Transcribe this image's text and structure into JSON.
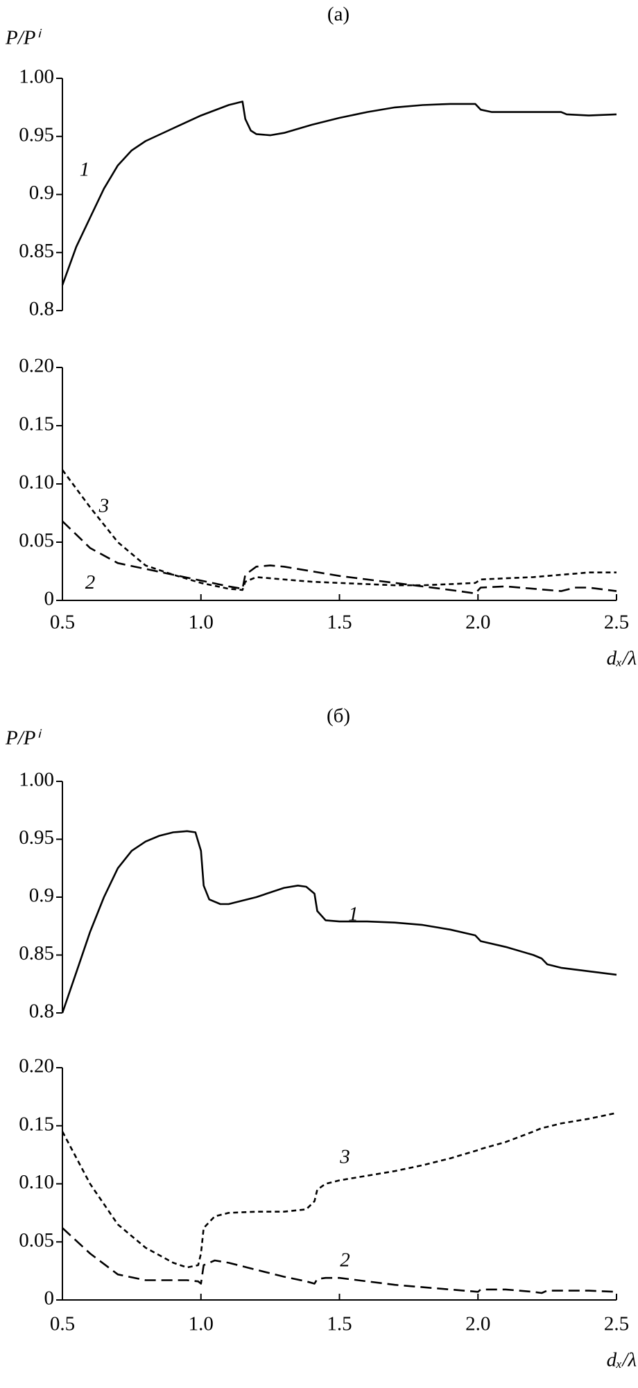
{
  "chart_data": [
    {
      "type": "line",
      "title": "(a)",
      "y_label": "P/Pⁱ",
      "xlim": [
        0.5,
        2.5
      ],
      "ylim": [
        0.8,
        1.0
      ],
      "yticks": [
        0.8,
        0.85,
        0.9,
        0.95,
        {
          "value": 1.0,
          "label": "1.00"
        }
      ],
      "x": [
        0.5,
        0.55,
        0.6,
        0.65,
        0.7,
        0.75,
        0.8,
        0.9,
        1.0,
        1.1,
        1.15,
        1.16,
        1.18,
        1.2,
        1.25,
        1.3,
        1.4,
        1.5,
        1.6,
        1.7,
        1.8,
        1.9,
        1.99,
        2.01,
        2.05,
        2.2,
        2.3,
        2.32,
        2.4,
        2.5
      ],
      "series": [
        {
          "name": "1",
          "color": "#000000",
          "line_style": "solid",
          "values": [
            0.822,
            0.855,
            0.88,
            0.905,
            0.925,
            0.938,
            0.946,
            0.957,
            0.968,
            0.977,
            0.98,
            0.965,
            0.955,
            0.952,
            0.951,
            0.953,
            0.96,
            0.966,
            0.971,
            0.975,
            0.977,
            0.978,
            0.978,
            0.973,
            0.971,
            0.971,
            0.971,
            0.969,
            0.968,
            0.969
          ]
        }
      ]
    },
    {
      "type": "line",
      "x_label": "dₓ/λ",
      "xlim": [
        0.5,
        2.5
      ],
      "ylim": [
        0,
        0.2
      ],
      "xticks": [
        0.5,
        {
          "value": 1.0,
          "label": "1.0"
        },
        1.5,
        {
          "value": 2.0,
          "label": "2.0"
        },
        2.5
      ],
      "yticks": [
        0,
        0.05,
        {
          "value": 0.1,
          "label": "0.10"
        },
        0.15,
        {
          "value": 0.2,
          "label": "0.20"
        }
      ],
      "x": [
        0.5,
        0.6,
        0.7,
        0.8,
        0.9,
        1.0,
        1.1,
        1.15,
        1.16,
        1.2,
        1.25,
        1.3,
        1.4,
        1.5,
        1.6,
        1.7,
        1.8,
        1.9,
        1.99,
        2.01,
        2.1,
        2.2,
        2.3,
        2.35,
        2.4,
        2.5
      ],
      "series": [
        {
          "name": "2",
          "color": "#000000",
          "line_style": "long-dash",
          "values": [
            0.068,
            0.045,
            0.032,
            0.027,
            0.022,
            0.017,
            0.012,
            0.01,
            0.022,
            0.029,
            0.03,
            0.029,
            0.025,
            0.021,
            0.018,
            0.015,
            0.012,
            0.009,
            0.006,
            0.011,
            0.012,
            0.01,
            0.008,
            0.011,
            0.011,
            0.008
          ]
        },
        {
          "name": "3",
          "color": "#000000",
          "line_style": "short-dash",
          "values": [
            0.112,
            0.08,
            0.05,
            0.03,
            0.022,
            0.015,
            0.01,
            0.009,
            0.016,
            0.02,
            0.019,
            0.018,
            0.016,
            0.015,
            0.014,
            0.013,
            0.013,
            0.014,
            0.015,
            0.018,
            0.019,
            0.02,
            0.022,
            0.023,
            0.024,
            0.024
          ]
        }
      ]
    },
    {
      "type": "line",
      "title": "(б)",
      "y_label": "P/Pⁱ",
      "xlim": [
        0.5,
        2.5
      ],
      "ylim": [
        0.8,
        1.0
      ],
      "yticks": [
        0.8,
        0.85,
        0.9,
        0.95,
        {
          "value": 1.0,
          "label": "1.00"
        }
      ],
      "x": [
        0.5,
        0.55,
        0.6,
        0.65,
        0.7,
        0.75,
        0.8,
        0.85,
        0.9,
        0.95,
        0.98,
        1.0,
        1.01,
        1.03,
        1.07,
        1.1,
        1.2,
        1.3,
        1.35,
        1.38,
        1.41,
        1.42,
        1.45,
        1.5,
        1.6,
        1.7,
        1.8,
        1.9,
        1.99,
        2.01,
        2.1,
        2.2,
        2.23,
        2.25,
        2.3,
        2.4,
        2.5
      ],
      "series": [
        {
          "name": "1",
          "color": "#000000",
          "line_style": "solid",
          "values": [
            0.8,
            0.835,
            0.87,
            0.9,
            0.925,
            0.94,
            0.948,
            0.953,
            0.956,
            0.957,
            0.956,
            0.94,
            0.91,
            0.898,
            0.894,
            0.894,
            0.9,
            0.908,
            0.91,
            0.909,
            0.903,
            0.888,
            0.88,
            0.879,
            0.879,
            0.878,
            0.876,
            0.872,
            0.867,
            0.862,
            0.857,
            0.85,
            0.847,
            0.842,
            0.839,
            0.836,
            0.833
          ]
        }
      ]
    },
    {
      "type": "line",
      "x_label": "dₓ/λ",
      "xlim": [
        0.5,
        2.5
      ],
      "ylim": [
        0,
        0.2
      ],
      "xticks": [
        0.5,
        {
          "value": 1.0,
          "label": "1.0"
        },
        1.5,
        {
          "value": 2.0,
          "label": "2.0"
        },
        2.5
      ],
      "yticks": [
        0,
        0.05,
        {
          "value": 0.1,
          "label": "0.10"
        },
        0.15,
        {
          "value": 0.2,
          "label": "0.20"
        }
      ],
      "x": [
        0.5,
        0.6,
        0.7,
        0.8,
        0.9,
        0.95,
        0.99,
        1.0,
        1.01,
        1.05,
        1.1,
        1.2,
        1.3,
        1.38,
        1.41,
        1.42,
        1.45,
        1.5,
        1.6,
        1.7,
        1.8,
        1.9,
        2.0,
        2.01,
        2.1,
        2.2,
        2.23,
        2.25,
        2.3,
        2.4,
        2.5
      ],
      "series": [
        {
          "name": "2",
          "color": "#000000",
          "line_style": "long-dash",
          "values": [
            0.062,
            0.04,
            0.022,
            0.017,
            0.017,
            0.017,
            0.016,
            0.014,
            0.03,
            0.034,
            0.032,
            0.026,
            0.02,
            0.016,
            0.014,
            0.018,
            0.019,
            0.019,
            0.016,
            0.013,
            0.011,
            0.009,
            0.007,
            0.009,
            0.009,
            0.007,
            0.006,
            0.008,
            0.008,
            0.008,
            0.007
          ]
        },
        {
          "name": "3",
          "color": "#000000",
          "line_style": "short-dash",
          "values": [
            0.145,
            0.1,
            0.065,
            0.045,
            0.032,
            0.028,
            0.03,
            0.04,
            0.062,
            0.072,
            0.075,
            0.076,
            0.076,
            0.078,
            0.085,
            0.095,
            0.1,
            0.103,
            0.107,
            0.111,
            0.116,
            0.122,
            0.129,
            0.13,
            0.136,
            0.145,
            0.148,
            0.149,
            0.152,
            0.156,
            0.161
          ]
        }
      ]
    }
  ]
}
